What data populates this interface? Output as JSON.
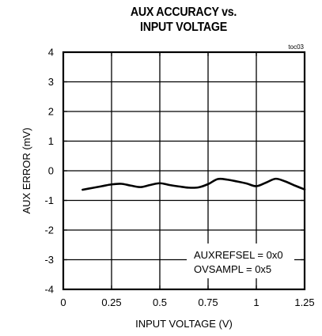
{
  "chart_data": {
    "type": "line",
    "title_lines": [
      "AUX ACCURACY vs.",
      "INPUT VOLTAGE"
    ],
    "figure_tag": "toc03",
    "xlabel": "INPUT VOLTAGE (V)",
    "ylabel": "AUX ERROR (mV)",
    "xlim": [
      0,
      1.25
    ],
    "ylim": [
      -4,
      4
    ],
    "x_ticks": [
      0,
      0.25,
      0.5,
      0.75,
      1,
      1.25
    ],
    "x_tick_labels": [
      "0",
      "0.25",
      "0.5",
      "0.75",
      "1",
      "1.25"
    ],
    "y_ticks": [
      4,
      3,
      2,
      1,
      0,
      -1,
      -2,
      -3,
      -4
    ],
    "y_tick_labels": [
      "4",
      "3",
      "2",
      "1",
      "0",
      "-1",
      "-2",
      "-3",
      "-4"
    ],
    "grid": true,
    "annotations": [
      "AUXREFSEL = 0x0",
      "OVSAMPL = 0x5"
    ],
    "series": [
      {
        "x": [
          0.1,
          0.15,
          0.2,
          0.25,
          0.3,
          0.35,
          0.4,
          0.45,
          0.5,
          0.55,
          0.6,
          0.65,
          0.7,
          0.75,
          0.8,
          0.85,
          0.9,
          0.95,
          1.0,
          1.05,
          1.1,
          1.15,
          1.2,
          1.25
        ],
        "y": [
          -0.64,
          -0.58,
          -0.52,
          -0.46,
          -0.44,
          -0.5,
          -0.55,
          -0.48,
          -0.42,
          -0.48,
          -0.53,
          -0.57,
          -0.56,
          -0.45,
          -0.28,
          -0.3,
          -0.36,
          -0.43,
          -0.52,
          -0.4,
          -0.27,
          -0.36,
          -0.5,
          -0.63
        ],
        "color": "#000000"
      }
    ]
  }
}
